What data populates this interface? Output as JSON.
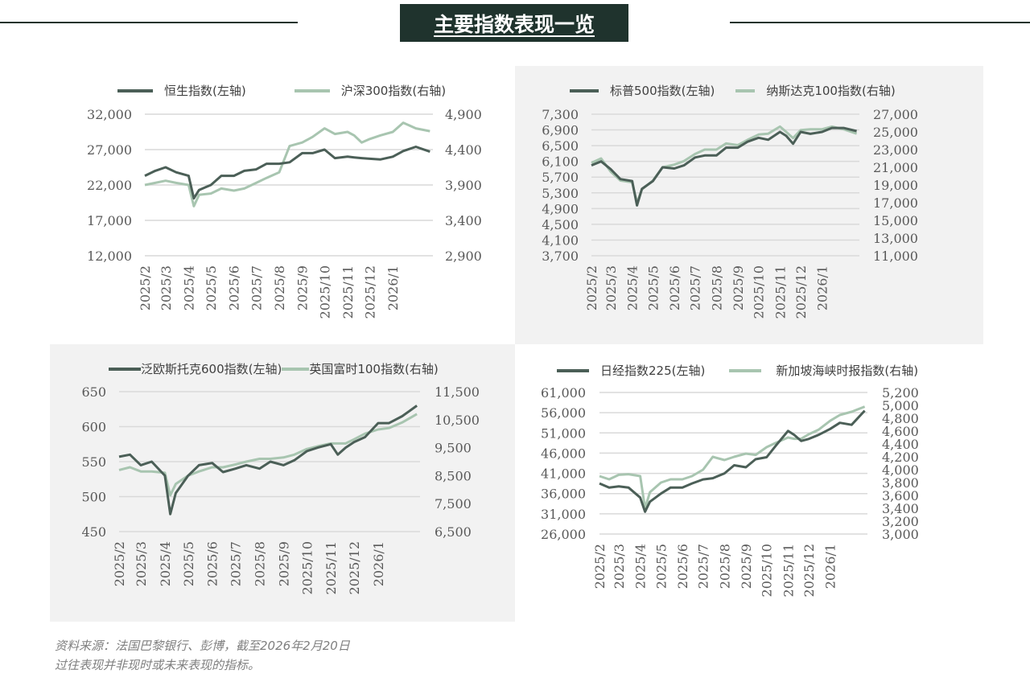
{
  "header": {
    "title": "主要指数表现一览"
  },
  "colors": {
    "dark_series": "#4b5f57",
    "light_series": "#a8c5b0",
    "title_bg": "#1f332d",
    "panel_bg": "#f2f2f2",
    "grid": "#d9d9d9"
  },
  "footnote": {
    "line1": "资料来源：法国巴黎银行、彭博，截至2026年2月20日",
    "line2": "过往表现并非现时或未来表现的指标。"
  },
  "chart_data": [
    {
      "type": "line",
      "legend": {
        "placement": "top"
      },
      "grid": true,
      "x_ticks": [
        "2025/2",
        "2025/3",
        "2025/4",
        "2025/5",
        "2025/6",
        "2025/7",
        "2025/8",
        "2025/9",
        "2025/10",
        "2025/11",
        "2025/12",
        "2026/1"
      ],
      "y_left": {
        "ylim": [
          12000,
          32000
        ],
        "ticks": [
          "12,000",
          "17,000",
          "22,000",
          "27,000",
          "32,000"
        ]
      },
      "y_right": {
        "ylim": [
          2900,
          4900
        ],
        "ticks": [
          "2,900",
          "3,400",
          "3,900",
          "4,400",
          "4,900"
        ]
      },
      "x": [
        "2025-02-01",
        "2025-02-15",
        "2025-03-01",
        "2025-03-15",
        "2025-04-01",
        "2025-04-08",
        "2025-04-15",
        "2025-05-01",
        "2025-05-15",
        "2025-06-01",
        "2025-06-15",
        "2025-07-01",
        "2025-07-15",
        "2025-08-01",
        "2025-08-15",
        "2025-09-01",
        "2025-09-15",
        "2025-10-01",
        "2025-10-15",
        "2025-11-01",
        "2025-11-10",
        "2025-11-20",
        "2025-12-01",
        "2025-12-15",
        "2026-01-01",
        "2026-01-15",
        "2026-02-01",
        "2026-02-20"
      ],
      "series": [
        {
          "name": "恒生指数(左轴)",
          "axis": "left",
          "values": [
            23300,
            24000,
            24500,
            23800,
            23300,
            20100,
            21300,
            22000,
            23300,
            23300,
            24000,
            24200,
            25000,
            25000,
            25200,
            26500,
            26500,
            27000,
            25800,
            26000,
            25900,
            25800,
            25700,
            25600,
            26000,
            26800,
            27400,
            26700
          ]
        },
        {
          "name": "沪深300指数(右轴)",
          "axis": "right",
          "values": [
            3900,
            3930,
            3960,
            3930,
            3900,
            3600,
            3760,
            3780,
            3850,
            3820,
            3850,
            3930,
            4000,
            4080,
            4450,
            4500,
            4580,
            4700,
            4620,
            4650,
            4600,
            4500,
            4550,
            4600,
            4650,
            4780,
            4700,
            4660
          ]
        }
      ]
    },
    {
      "type": "line",
      "legend": {
        "placement": "top"
      },
      "grid": true,
      "x_ticks": [
        "2025/2",
        "2025/3",
        "2025/4",
        "2025/5",
        "2025/6",
        "2025/7",
        "2025/8",
        "2025/9",
        "2025/10",
        "2025/11",
        "2025/12",
        "2026/1"
      ],
      "y_left": {
        "ylim": [
          3700,
          7300
        ],
        "ticks": [
          "3,700",
          "4,100",
          "4,500",
          "4,900",
          "5,300",
          "5,700",
          "6,100",
          "6,500",
          "6,900",
          "7,300"
        ]
      },
      "y_right": {
        "ylim": [
          11000,
          27000
        ],
        "ticks": [
          "11,000",
          "13,000",
          "15,000",
          "17,000",
          "19,000",
          "21,000",
          "23,000",
          "25,000",
          "27,000"
        ]
      },
      "x": [
        "2025-02-01",
        "2025-02-15",
        "2025-03-01",
        "2025-03-15",
        "2025-04-01",
        "2025-04-08",
        "2025-04-15",
        "2025-05-01",
        "2025-05-15",
        "2025-06-01",
        "2025-06-15",
        "2025-07-01",
        "2025-07-15",
        "2025-08-01",
        "2025-08-15",
        "2025-09-01",
        "2025-09-15",
        "2025-10-01",
        "2025-10-15",
        "2025-11-01",
        "2025-11-10",
        "2025-11-20",
        "2025-12-01",
        "2025-12-15",
        "2026-01-01",
        "2026-01-15",
        "2026-02-01",
        "2026-02-20"
      ],
      "series": [
        {
          "name": "标普500指数(左轴)",
          "axis": "left",
          "values": [
            6000,
            6100,
            5900,
            5650,
            5600,
            4980,
            5400,
            5600,
            5950,
            5920,
            6000,
            6200,
            6250,
            6250,
            6450,
            6450,
            6600,
            6700,
            6650,
            6850,
            6750,
            6550,
            6850,
            6800,
            6850,
            6950,
            6950,
            6870
          ]
        },
        {
          "name": "纳斯达克100指数(右轴)",
          "axis": "right",
          "values": [
            21500,
            22000,
            20500,
            19500,
            19300,
            17000,
            18500,
            19500,
            21000,
            21300,
            21700,
            22500,
            23000,
            23000,
            23700,
            23500,
            24100,
            24700,
            24800,
            25600,
            25000,
            24300,
            25200,
            25300,
            25300,
            25600,
            25300,
            24800
          ]
        }
      ]
    },
    {
      "type": "line",
      "legend": {
        "placement": "top"
      },
      "grid": true,
      "x_ticks": [
        "2025/2",
        "2025/3",
        "2025/4",
        "2025/5",
        "2025/6",
        "2025/7",
        "2025/8",
        "2025/9",
        "2025/10",
        "2025/11",
        "2025/12",
        "2026/1"
      ],
      "y_left": {
        "ylim": [
          450,
          650
        ],
        "ticks": [
          "450",
          "500",
          "550",
          "600",
          "650"
        ]
      },
      "y_right": {
        "ylim": [
          6500,
          11500
        ],
        "ticks": [
          "6,500",
          "7,500",
          "8,500",
          "9,500",
          "10,500",
          "11,500"
        ]
      },
      "x": [
        "2025-02-01",
        "2025-02-15",
        "2025-03-01",
        "2025-03-15",
        "2025-04-01",
        "2025-04-08",
        "2025-04-15",
        "2025-05-01",
        "2025-05-15",
        "2025-06-01",
        "2025-06-15",
        "2025-07-01",
        "2025-07-15",
        "2025-08-01",
        "2025-08-15",
        "2025-09-01",
        "2025-09-15",
        "2025-10-01",
        "2025-10-15",
        "2025-11-01",
        "2025-11-10",
        "2025-11-20",
        "2025-12-01",
        "2025-12-15",
        "2026-01-01",
        "2026-01-15",
        "2026-02-01",
        "2026-02-20"
      ],
      "series": [
        {
          "name": "泛欧斯托克600指数(左轴)",
          "axis": "left",
          "values": [
            557,
            560,
            545,
            550,
            530,
            475,
            505,
            530,
            545,
            548,
            535,
            540,
            545,
            540,
            550,
            545,
            552,
            565,
            570,
            575,
            560,
            570,
            578,
            585,
            605,
            605,
            615,
            630
          ]
        },
        {
          "name": "英国富时100指数(右轴)",
          "axis": "right",
          "values": [
            8700,
            8800,
            8650,
            8650,
            8600,
            7800,
            8200,
            8500,
            8650,
            8800,
            8800,
            8900,
            9000,
            9100,
            9100,
            9150,
            9250,
            9450,
            9550,
            9650,
            9650,
            9650,
            9800,
            10000,
            10150,
            10200,
            10400,
            10700
          ]
        }
      ]
    },
    {
      "type": "line",
      "legend": {
        "placement": "top"
      },
      "grid": true,
      "x_ticks": [
        "2025/2",
        "2025/3",
        "2025/4",
        "2025/5",
        "2025/6",
        "2025/7",
        "2025/8",
        "2025/9",
        "2025/10",
        "2025/11",
        "2025/12",
        "2026/1"
      ],
      "y_left": {
        "ylim": [
          26000,
          61000
        ],
        "ticks": [
          "26,000",
          "31,000",
          "36,000",
          "41,000",
          "46,000",
          "51,000",
          "56,000",
          "61,000"
        ]
      },
      "y_right": {
        "ylim": [
          3000,
          5200
        ],
        "ticks": [
          "3,000",
          "3,200",
          "3,400",
          "3,600",
          "3,800",
          "4,000",
          "4,200",
          "4,400",
          "4,600",
          "4,800",
          "5,000",
          "5,200"
        ]
      },
      "x": [
        "2025-02-01",
        "2025-02-15",
        "2025-03-01",
        "2025-03-15",
        "2025-04-01",
        "2025-04-08",
        "2025-04-15",
        "2025-05-01",
        "2025-05-15",
        "2025-06-01",
        "2025-06-15",
        "2025-07-01",
        "2025-07-15",
        "2025-08-01",
        "2025-08-15",
        "2025-09-01",
        "2025-09-15",
        "2025-10-01",
        "2025-10-15",
        "2025-11-01",
        "2025-11-10",
        "2025-11-20",
        "2025-12-01",
        "2025-12-15",
        "2026-01-01",
        "2026-01-15",
        "2026-02-01",
        "2026-02-20"
      ],
      "series": [
        {
          "name": "日经指数225(左轴)",
          "axis": "left",
          "values": [
            38500,
            37500,
            37800,
            37500,
            35000,
            31500,
            34000,
            36000,
            37500,
            37500,
            38500,
            39500,
            39800,
            41000,
            43000,
            42500,
            44500,
            45000,
            48000,
            51500,
            50500,
            49000,
            49500,
            50500,
            52000,
            53500,
            53000,
            56500
          ]
        },
        {
          "name": "新加坡海峡时报指数(右轴)",
          "axis": "right",
          "values": [
            3900,
            3850,
            3920,
            3930,
            3900,
            3400,
            3650,
            3800,
            3850,
            3850,
            3900,
            4000,
            4200,
            4150,
            4200,
            4250,
            4230,
            4350,
            4420,
            4500,
            4480,
            4480,
            4550,
            4620,
            4760,
            4850,
            4900,
            4980
          ]
        }
      ]
    }
  ]
}
